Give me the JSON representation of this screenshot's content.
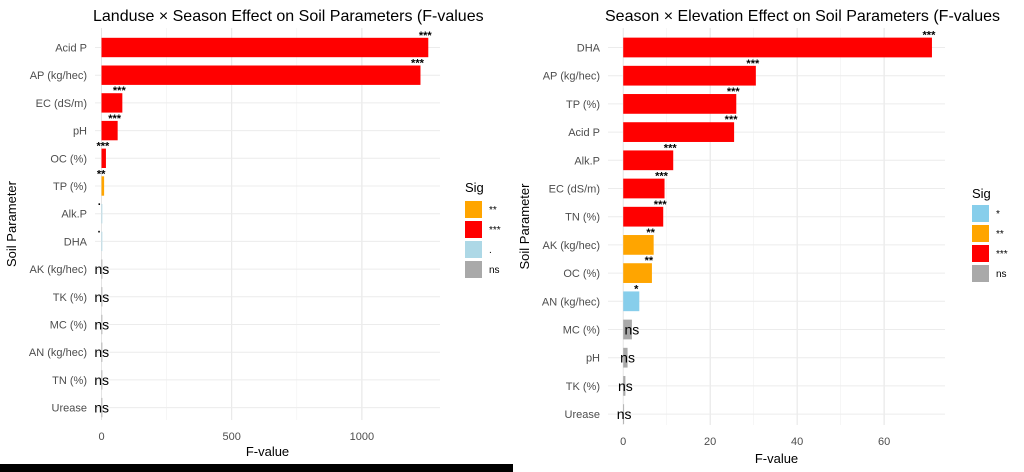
{
  "chart_data": [
    {
      "type": "bar",
      "orientation": "horizontal",
      "title": "Landuse × Season Effect on Soil Parameters (F-values",
      "xlabel": "F-value",
      "ylabel": "Soil Parameter",
      "xlim": [
        -25,
        1300
      ],
      "xticks": [
        0,
        500,
        1000
      ],
      "grid": true,
      "legend_position": "right",
      "legend": {
        "title": "Sig",
        "entries": [
          {
            "label": "**",
            "color": "#FFA500"
          },
          {
            "label": "***",
            "color": "#FF0000"
          },
          {
            "label": ".",
            "color": "#ADD8E6"
          },
          {
            "label": "ns",
            "color": "#A9A9A9"
          }
        ]
      },
      "bars": [
        {
          "param": "Acid P",
          "value": 1255,
          "sig": "***",
          "color": "#FF0000"
        },
        {
          "param": "AP (kg/hec)",
          "value": 1225,
          "sig": "***",
          "color": "#FF0000"
        },
        {
          "param": "EC (dS/m)",
          "value": 80,
          "sig": "***",
          "color": "#FF0000"
        },
        {
          "param": "pH",
          "value": 62,
          "sig": "***",
          "color": "#FF0000"
        },
        {
          "param": "OC (%)",
          "value": 17,
          "sig": "***",
          "color": "#FF0000"
        },
        {
          "param": "TP (%)",
          "value": 10,
          "sig": "**",
          "color": "#FFA500"
        },
        {
          "param": "Alk.P",
          "value": 3,
          "sig": ".",
          "color": "#ADD8E6"
        },
        {
          "param": "DHA",
          "value": 2,
          "sig": ".",
          "color": "#ADD8E6"
        },
        {
          "param": "AK (kg/hec)",
          "value": 1.5,
          "sig": "ns",
          "color": "#A9A9A9"
        },
        {
          "param": "TK (%)",
          "value": 1.2,
          "sig": "ns",
          "color": "#A9A9A9"
        },
        {
          "param": "MC (%)",
          "value": 1.0,
          "sig": "ns",
          "color": "#A9A9A9"
        },
        {
          "param": "AN (kg/hec)",
          "value": 0.8,
          "sig": "ns",
          "color": "#A9A9A9"
        },
        {
          "param": "TN (%)",
          "value": 0.5,
          "sig": "ns",
          "color": "#A9A9A9"
        },
        {
          "param": "Urease",
          "value": 0.3,
          "sig": "ns",
          "color": "#A9A9A9"
        }
      ]
    },
    {
      "type": "bar",
      "orientation": "horizontal",
      "title": "Season × Elevation Effect on Soil Parameters (F-values",
      "xlabel": "F-value",
      "ylabel": "Soil Parameter",
      "xlim": [
        -3.5,
        74
      ],
      "xticks": [
        0,
        20,
        40,
        60
      ],
      "grid": true,
      "legend_position": "right",
      "legend": {
        "title": "Sig",
        "entries": [
          {
            "label": "*",
            "color": "#87CEEB"
          },
          {
            "label": "**",
            "color": "#FFA500"
          },
          {
            "label": "***",
            "color": "#FF0000"
          },
          {
            "label": "ns",
            "color": "#A9A9A9"
          }
        ]
      },
      "bars": [
        {
          "param": "DHA",
          "value": 71,
          "sig": "***",
          "color": "#FF0000"
        },
        {
          "param": "AP (kg/hec)",
          "value": 30.5,
          "sig": "***",
          "color": "#FF0000"
        },
        {
          "param": "TP (%)",
          "value": 26,
          "sig": "***",
          "color": "#FF0000"
        },
        {
          "param": "Acid P",
          "value": 25.5,
          "sig": "***",
          "color": "#FF0000"
        },
        {
          "param": "Alk.P",
          "value": 11.5,
          "sig": "***",
          "color": "#FF0000"
        },
        {
          "param": "EC (dS/m)",
          "value": 9.5,
          "sig": "***",
          "color": "#FF0000"
        },
        {
          "param": "TN (%)",
          "value": 9.2,
          "sig": "***",
          "color": "#FF0000"
        },
        {
          "param": "AK (kg/hec)",
          "value": 7,
          "sig": "**",
          "color": "#FFA500"
        },
        {
          "param": "OC (%)",
          "value": 6.6,
          "sig": "**",
          "color": "#FFA500"
        },
        {
          "param": "AN (kg/hec)",
          "value": 3.7,
          "sig": "*",
          "color": "#87CEEB"
        },
        {
          "param": "MC (%)",
          "value": 2.0,
          "sig": "ns",
          "color": "#A9A9A9"
        },
        {
          "param": "pH",
          "value": 1.0,
          "sig": "ns",
          "color": "#A9A9A9"
        },
        {
          "param": "TK (%)",
          "value": 0.5,
          "sig": "ns",
          "color": "#A9A9A9"
        },
        {
          "param": "Urease",
          "value": 0.2,
          "sig": "ns",
          "color": "#A9A9A9"
        }
      ]
    }
  ]
}
